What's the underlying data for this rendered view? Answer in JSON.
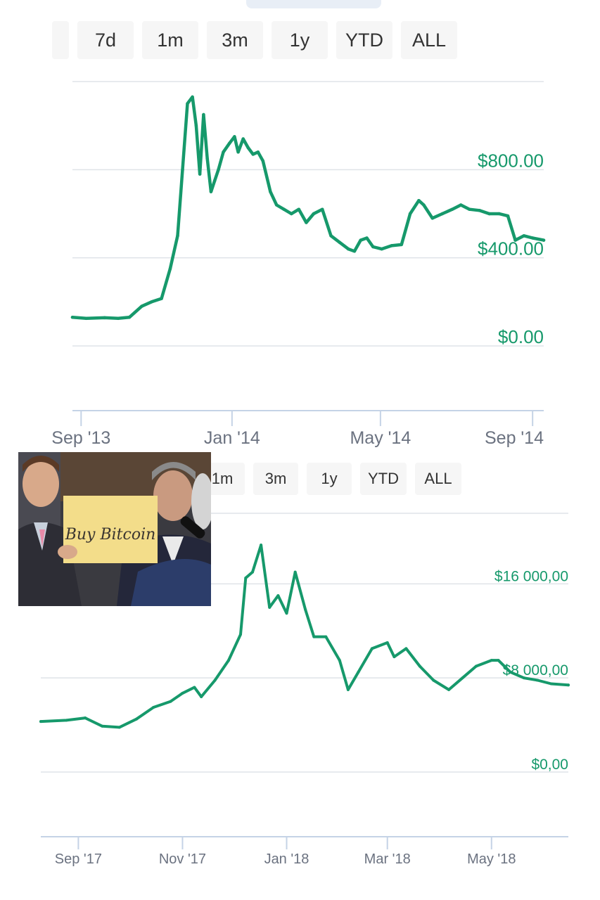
{
  "top_panel": {
    "range_buttons": [
      "7d",
      "1m",
      "3m",
      "1y",
      "YTD",
      "ALL"
    ],
    "colors": {
      "line": "#16996b",
      "label": "#16996b",
      "grid": "#dfe3e8",
      "axis": "#c5d3e6",
      "tick_text": "#6b7280"
    }
  },
  "bottom_panel": {
    "range_buttons": [
      "1m",
      "3m",
      "1y",
      "YTD",
      "ALL"
    ]
  },
  "meme": {
    "sign_text": "Buy Bitcoin",
    "icon": "photo-people-holding-sign"
  },
  "chart_data": [
    {
      "type": "line",
      "title": "",
      "xlabel": "",
      "ylabel": "",
      "y_tick_labels": [
        "$800.00",
        "$400.00",
        "$0.00"
      ],
      "y_ticks": [
        800,
        400,
        0
      ],
      "ylim": [
        0,
        1200
      ],
      "x_tick_labels": [
        "Sep '13",
        "Jan '14",
        "May '14",
        "Sep '14"
      ],
      "x_ticks": [
        "2013-09-01",
        "2014-01-01",
        "2014-05-01",
        "2014-09-01"
      ],
      "xlim": [
        "2013-08-25",
        "2014-09-10"
      ],
      "grid": true,
      "series": [
        {
          "x": [
            "2013-08-25",
            "2013-09-05",
            "2013-09-20",
            "2013-10-01",
            "2013-10-10",
            "2013-10-20",
            "2013-10-28",
            "2013-11-05",
            "2013-11-12",
            "2013-11-18",
            "2013-11-22",
            "2013-11-26",
            "2013-11-30",
            "2013-12-03",
            "2013-12-06",
            "2013-12-09",
            "2013-12-12",
            "2013-12-15",
            "2013-12-18",
            "2013-12-21",
            "2013-12-25",
            "2013-12-30",
            "2014-01-03",
            "2014-01-06",
            "2014-01-10",
            "2014-01-14",
            "2014-01-18",
            "2014-01-22",
            "2014-01-26",
            "2014-02-01",
            "2014-02-06",
            "2014-02-12",
            "2014-02-18",
            "2014-02-24",
            "2014-03-02",
            "2014-03-08",
            "2014-03-15",
            "2014-03-22",
            "2014-03-29",
            "2014-04-05",
            "2014-04-10",
            "2014-04-15",
            "2014-04-20",
            "2014-04-25",
            "2014-05-02",
            "2014-05-10",
            "2014-05-18",
            "2014-05-25",
            "2014-06-01",
            "2014-06-05",
            "2014-06-12",
            "2014-06-20",
            "2014-06-28",
            "2014-07-05",
            "2014-07-12",
            "2014-07-20",
            "2014-07-28",
            "2014-08-05",
            "2014-08-12",
            "2014-08-18",
            "2014-08-25",
            "2014-09-01",
            "2014-09-10"
          ],
          "y": [
            130,
            125,
            128,
            125,
            130,
            180,
            200,
            215,
            350,
            500,
            800,
            1100,
            1130,
            1000,
            780,
            1050,
            850,
            700,
            750,
            800,
            880,
            920,
            950,
            880,
            940,
            900,
            870,
            880,
            840,
            700,
            640,
            620,
            600,
            620,
            560,
            600,
            620,
            500,
            470,
            440,
            430,
            480,
            490,
            450,
            440,
            455,
            460,
            600,
            660,
            640,
            580,
            600,
            620,
            640,
            620,
            615,
            600,
            600,
            590,
            480,
            500,
            490,
            480
          ]
        }
      ]
    },
    {
      "type": "line",
      "title": "",
      "xlabel": "",
      "ylabel": "",
      "y_tick_labels": [
        "$16 000,00",
        "$8 000,00",
        "$0,00"
      ],
      "y_ticks": [
        16000,
        8000,
        0
      ],
      "ylim": [
        0,
        22000
      ],
      "x_tick_labels": [
        "Sep '17",
        "Nov '17",
        "Jan '18",
        "Mar '18",
        "May '18"
      ],
      "x_ticks": [
        "2017-09-01",
        "2017-11-01",
        "2018-01-01",
        "2018-03-01",
        "2018-05-01"
      ],
      "xlim": [
        "2017-08-10",
        "2018-06-15"
      ],
      "grid": true,
      "series": [
        {
          "x": [
            "2017-08-10",
            "2017-08-25",
            "2017-09-05",
            "2017-09-15",
            "2017-09-25",
            "2017-10-05",
            "2017-10-15",
            "2017-10-25",
            "2017-11-01",
            "2017-11-08",
            "2017-11-12",
            "2017-11-20",
            "2017-11-28",
            "2017-12-05",
            "2017-12-08",
            "2017-12-12",
            "2017-12-17",
            "2017-12-22",
            "2017-12-27",
            "2018-01-01",
            "2018-01-06",
            "2018-01-12",
            "2018-01-17",
            "2018-01-24",
            "2018-02-01",
            "2018-02-06",
            "2018-02-12",
            "2018-02-20",
            "2018-03-01",
            "2018-03-05",
            "2018-03-12",
            "2018-03-20",
            "2018-03-28",
            "2018-04-06",
            "2018-04-14",
            "2018-04-22",
            "2018-05-01",
            "2018-05-05",
            "2018-05-12",
            "2018-05-20",
            "2018-05-28",
            "2018-06-05",
            "2018-06-15"
          ],
          "y": [
            4300,
            4400,
            4600,
            3900,
            3800,
            4500,
            5500,
            6000,
            6700,
            7200,
            6400,
            7800,
            9500,
            11700,
            16500,
            17000,
            19300,
            14000,
            15000,
            13500,
            17000,
            13800,
            11500,
            11500,
            9500,
            7000,
            8500,
            10500,
            11000,
            9800,
            10500,
            9000,
            7800,
            7000,
            8000,
            9000,
            9500,
            9500,
            8500,
            8000,
            7800,
            7500,
            7400
          ]
        }
      ]
    }
  ]
}
